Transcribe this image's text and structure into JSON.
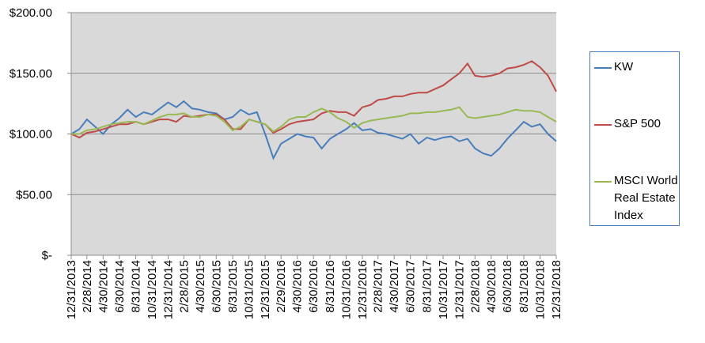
{
  "chart_data": {
    "type": "line",
    "x": [
      "12/31/2013",
      "1/31/2014",
      "2/28/2014",
      "3/31/2014",
      "4/30/2014",
      "5/31/2014",
      "6/30/2014",
      "7/31/2014",
      "8/31/2014",
      "9/30/2014",
      "10/31/2014",
      "11/30/2014",
      "12/31/2014",
      "1/31/2015",
      "2/28/2015",
      "3/31/2015",
      "4/30/2015",
      "5/31/2015",
      "6/30/2015",
      "7/31/2015",
      "8/31/2015",
      "9/30/2015",
      "10/31/2015",
      "11/30/2015",
      "12/31/2015",
      "1/31/2016",
      "2/29/2016",
      "3/31/2016",
      "4/30/2016",
      "5/31/2016",
      "6/30/2016",
      "7/31/2016",
      "8/31/2016",
      "9/30/2016",
      "10/31/2016",
      "11/30/2016",
      "12/31/2016",
      "1/31/2017",
      "2/28/2017",
      "3/31/2017",
      "4/30/2017",
      "5/31/2017",
      "6/30/2017",
      "7/31/2017",
      "8/31/2017",
      "9/30/2017",
      "10/31/2017",
      "11/30/2017",
      "12/31/2017",
      "1/31/2018",
      "2/28/2018",
      "3/31/2018",
      "4/30/2018",
      "5/31/2018",
      "6/30/2018",
      "7/31/2018",
      "8/31/2018",
      "9/30/2018",
      "10/31/2018",
      "11/30/2018",
      "12/31/2018"
    ],
    "series": [
      {
        "name": "KW",
        "color": "#4a7ebb",
        "values": [
          100,
          104,
          112,
          106,
          100,
          108,
          113,
          120,
          114,
          118,
          116,
          121,
          126,
          122,
          127,
          121,
          120,
          118,
          117,
          112,
          114,
          120,
          116,
          118,
          100,
          80,
          92,
          96,
          100,
          98,
          97,
          88,
          96,
          100,
          104,
          109,
          103,
          104,
          101,
          100,
          98,
          96,
          100,
          92,
          97,
          95,
          97,
          98,
          94,
          96,
          88,
          84,
          82,
          88,
          96,
          103,
          110,
          106,
          108,
          100,
          94
        ]
      },
      {
        "name": "S&P 500",
        "color": "#be4b48",
        "values": [
          100,
          97,
          101,
          102,
          104,
          106,
          108,
          108,
          110,
          108,
          110,
          112,
          112,
          110,
          115,
          114,
          115,
          116,
          116,
          112,
          104,
          104,
          112,
          110,
          108,
          101,
          104,
          108,
          110,
          111,
          112,
          117,
          119,
          118,
          118,
          115,
          122,
          124,
          128,
          129,
          131,
          131,
          133,
          134,
          134,
          137,
          140,
          145,
          150,
          158,
          148,
          147,
          148,
          150,
          154,
          155,
          157,
          160,
          155,
          148,
          135
        ]
      },
      {
        "name": "MSCI World Real Estate Index",
        "color": "#98b954",
        "values": [
          100,
          100,
          103,
          104,
          106,
          108,
          109,
          110,
          110,
          108,
          111,
          114,
          116,
          116,
          117,
          114,
          114,
          116,
          115,
          110,
          103,
          106,
          112,
          110,
          108,
          102,
          106,
          112,
          114,
          114,
          118,
          121,
          118,
          113,
          110,
          105,
          109,
          111,
          112,
          113,
          114,
          115,
          117,
          117,
          118,
          118,
          119,
          120,
          122,
          114,
          113,
          114,
          115,
          116,
          118,
          120,
          119,
          119,
          118,
          114,
          110
        ]
      }
    ],
    "xlim": [
      "12/31/2013",
      "12/31/2018"
    ],
    "xticks": [
      "12/31/2013",
      "2/28/2014",
      "4/30/2014",
      "6/30/2014",
      "8/31/2014",
      "10/31/2014",
      "12/31/2014",
      "2/28/2015",
      "4/30/2015",
      "6/30/2015",
      "8/31/2015",
      "10/31/2015",
      "12/31/2015",
      "2/29/2016",
      "4/30/2016",
      "6/30/2016",
      "8/31/2016",
      "10/31/2016",
      "12/31/2016",
      "2/28/2017",
      "4/30/2017",
      "6/30/2017",
      "8/31/2017",
      "10/31/2017",
      "12/31/2017",
      "2/28/2018",
      "4/30/2018",
      "6/30/2018",
      "8/31/2018",
      "10/31/2018",
      "12/31/2018"
    ],
    "ylim": [
      0,
      200
    ],
    "yticks": [
      {
        "value": 0,
        "label": "$-"
      },
      {
        "value": 50,
        "label": "$50.00"
      },
      {
        "value": 100,
        "label": "$100.00"
      },
      {
        "value": 150,
        "label": "$150.00"
      },
      {
        "value": 200,
        "label": "$200.00"
      }
    ],
    "grid": true,
    "plot_background": "#d9d9d9"
  }
}
